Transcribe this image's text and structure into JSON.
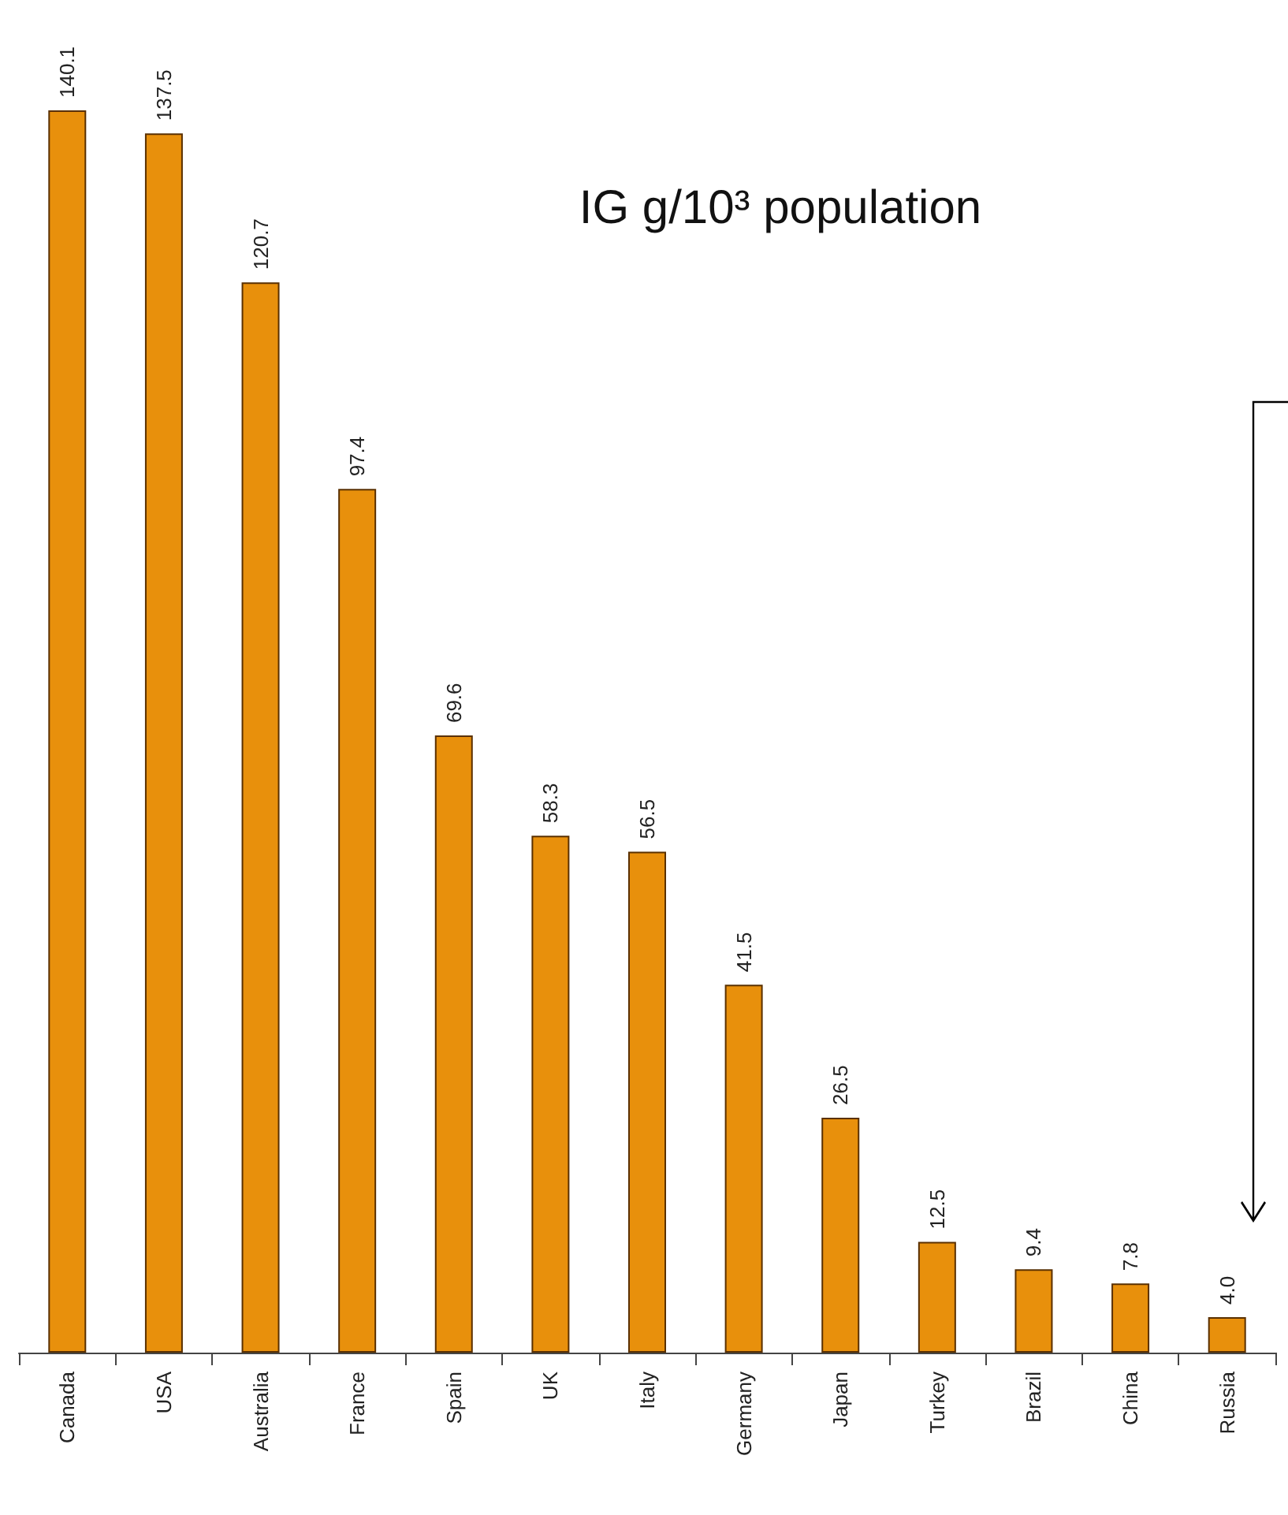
{
  "chart_data": {
    "type": "bar",
    "title": "IG g/10³ population",
    "categories": [
      "Canada",
      "USA",
      "Australia",
      "France",
      "Spain",
      "UK",
      "Italy",
      "Germany",
      "Japan",
      "Turkey",
      "Brazil",
      "China",
      "Russia"
    ],
    "values": [
      140.1,
      137.5,
      120.7,
      97.4,
      69.6,
      58.3,
      56.5,
      41.5,
      26.5,
      12.5,
      9.4,
      7.8,
      4.0
    ],
    "value_labels": [
      "140.1",
      "137.5",
      "120.7",
      "97.4",
      "69.6",
      "58.3",
      "56.5",
      "41.5",
      "26.5",
      "12.5",
      "9.4",
      "7.8",
      "4.0"
    ],
    "color": "#e8900c",
    "grid": false
  }
}
